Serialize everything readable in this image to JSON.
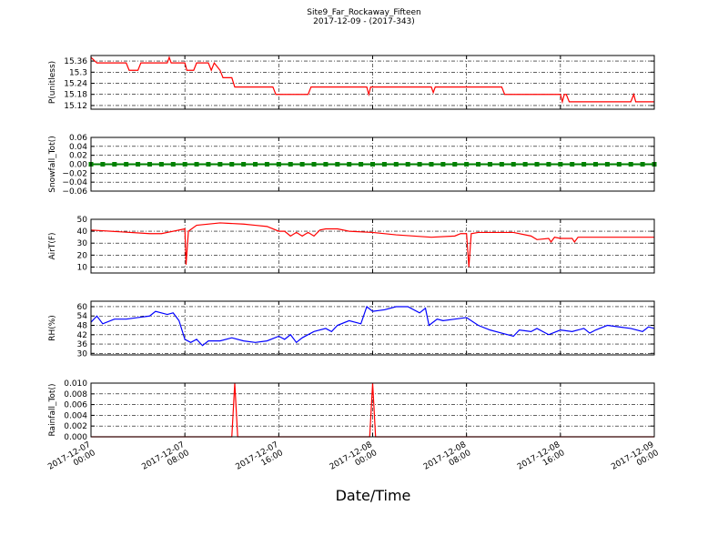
{
  "title": "Site9_Far_Rockaway_Fifteen",
  "subtitle": "2017-12-09 - (2017-343)",
  "xlabel": "Date/Time",
  "chart_data": [
    {
      "type": "line",
      "ylabel": "P(unitless)",
      "color": "#ff0000",
      "grid": true,
      "xlim": [
        "2017-12-07 00:00",
        "2017-12-09 00:00"
      ],
      "xticks": [
        "2017-12-07 00:00",
        "2017-12-07 08:00",
        "2017-12-07 16:00",
        "2017-12-08 00:00",
        "2017-12-08 08:00",
        "2017-12-08 16:00",
        "2017-12-09 00:00"
      ],
      "ylim": [
        15.1,
        15.39
      ],
      "yticks": [
        15.12,
        15.18,
        15.24,
        15.3,
        15.36
      ],
      "x": [
        "2017-12-07 00:00",
        "2017-12-07 00:30",
        "2017-12-07 03:00",
        "2017-12-07 03:15",
        "2017-12-07 04:00",
        "2017-12-07 04:15",
        "2017-12-07 06:30",
        "2017-12-07 06:40",
        "2017-12-07 06:50",
        "2017-12-07 08:00",
        "2017-12-07 08:10",
        "2017-12-07 08:45",
        "2017-12-07 09:00",
        "2017-12-07 10:00",
        "2017-12-07 10:15",
        "2017-12-07 10:30",
        "2017-12-07 11:00",
        "2017-12-07 11:15",
        "2017-12-07 12:00",
        "2017-12-07 12:15",
        "2017-12-07 15:30",
        "2017-12-07 15:45",
        "2017-12-07 18:30",
        "2017-12-07 18:45",
        "2017-12-07 23:30",
        "2017-12-07 23:40",
        "2017-12-07 23:50",
        "2017-12-08 05:00",
        "2017-12-08 05:10",
        "2017-12-08 05:20",
        "2017-12-08 11:00",
        "2017-12-08 11:15",
        "2017-12-08 16:00",
        "2017-12-08 16:10",
        "2017-12-08 16:20",
        "2017-12-08 16:30",
        "2017-12-08 16:45",
        "2017-12-08 22:00",
        "2017-12-08 22:15",
        "2017-12-08 22:25",
        "2017-12-09 00:00"
      ],
      "values": [
        15.38,
        15.35,
        15.35,
        15.31,
        15.31,
        15.35,
        15.35,
        15.38,
        15.35,
        15.35,
        15.31,
        15.31,
        15.35,
        15.35,
        15.31,
        15.35,
        15.31,
        15.27,
        15.27,
        15.22,
        15.22,
        15.18,
        15.18,
        15.22,
        15.22,
        15.18,
        15.22,
        15.22,
        15.19,
        15.22,
        15.22,
        15.18,
        15.18,
        15.14,
        15.18,
        15.18,
        15.14,
        15.14,
        15.18,
        15.14,
        15.14
      ]
    },
    {
      "type": "line",
      "ylabel": "Snowfall_Tot()",
      "color": "#008000",
      "grid": true,
      "marker": true,
      "xlim": [
        "2017-12-07 00:00",
        "2017-12-09 00:00"
      ],
      "xticks": [
        "2017-12-07 00:00",
        "2017-12-07 08:00",
        "2017-12-07 16:00",
        "2017-12-08 00:00",
        "2017-12-08 08:00",
        "2017-12-08 16:00",
        "2017-12-09 00:00"
      ],
      "ylim": [
        -0.06,
        0.06
      ],
      "yticks": [
        {
          "value": -0.06,
          "label": "−0.06"
        },
        {
          "value": -0.04,
          "label": "−0.04"
        },
        {
          "value": -0.02,
          "label": "−0.02"
        },
        {
          "value": 0,
          "label": "0.00"
        },
        0.02,
        0.04,
        0.06
      ],
      "x": [
        "2017-12-07 00:00",
        "2017-12-07 01:00",
        "2017-12-07 02:00",
        "2017-12-07 03:00",
        "2017-12-07 04:00",
        "2017-12-07 05:00",
        "2017-12-07 06:00",
        "2017-12-07 07:00",
        "2017-12-07 08:00",
        "2017-12-07 09:00",
        "2017-12-07 10:00",
        "2017-12-07 11:00",
        "2017-12-07 12:00",
        "2017-12-07 13:00",
        "2017-12-07 14:00",
        "2017-12-07 15:00",
        "2017-12-07 16:00",
        "2017-12-07 17:00",
        "2017-12-07 18:00",
        "2017-12-07 19:00",
        "2017-12-07 20:00",
        "2017-12-07 21:00",
        "2017-12-07 22:00",
        "2017-12-07 23:00",
        "2017-12-08 00:00",
        "2017-12-08 01:00",
        "2017-12-08 02:00",
        "2017-12-08 03:00",
        "2017-12-08 04:00",
        "2017-12-08 05:00",
        "2017-12-08 06:00",
        "2017-12-08 07:00",
        "2017-12-08 08:00",
        "2017-12-08 09:00",
        "2017-12-08 10:00",
        "2017-12-08 11:00",
        "2017-12-08 12:00",
        "2017-12-08 13:00",
        "2017-12-08 14:00",
        "2017-12-08 15:00",
        "2017-12-08 16:00",
        "2017-12-08 17:00",
        "2017-12-08 18:00",
        "2017-12-08 19:00",
        "2017-12-08 20:00",
        "2017-12-08 21:00",
        "2017-12-08 22:00",
        "2017-12-08 23:00",
        "2017-12-09 00:00"
      ],
      "values": [
        0,
        0,
        0,
        0,
        0,
        0,
        0,
        0,
        0,
        0,
        0,
        0,
        0,
        0,
        0,
        0,
        0,
        0,
        0,
        0,
        0,
        0,
        0,
        0,
        0,
        0,
        0,
        0,
        0,
        0,
        0,
        0,
        0,
        0,
        0,
        0,
        0,
        0,
        0,
        0,
        0,
        0,
        0,
        0,
        0,
        0,
        0,
        0,
        0
      ]
    },
    {
      "type": "line",
      "ylabel": "AirT(F)",
      "color": "#ff0000",
      "grid": true,
      "xlim": [
        "2017-12-07 00:00",
        "2017-12-09 00:00"
      ],
      "xticks": [
        "2017-12-07 00:00",
        "2017-12-07 08:00",
        "2017-12-07 16:00",
        "2017-12-08 00:00",
        "2017-12-08 08:00",
        "2017-12-08 16:00",
        "2017-12-09 00:00"
      ],
      "ylim": [
        5,
        50
      ],
      "yticks": [
        10,
        20,
        30,
        40,
        50
      ],
      "x": [
        "2017-12-07 00:00",
        "2017-12-07 05:00",
        "2017-12-07 06:00",
        "2017-12-07 08:00",
        "2017-12-07 08:06",
        "2017-12-07 08:18",
        "2017-12-07 09:00",
        "2017-12-07 11:00",
        "2017-12-07 13:00",
        "2017-12-07 14:00",
        "2017-12-07 15:00",
        "2017-12-07 16:00",
        "2017-12-07 16:30",
        "2017-12-07 17:00",
        "2017-12-07 17:30",
        "2017-12-07 18:00",
        "2017-12-07 18:30",
        "2017-12-07 19:00",
        "2017-12-07 19:30",
        "2017-12-07 20:00",
        "2017-12-07 21:00",
        "2017-12-07 22:00",
        "2017-12-08 00:00",
        "2017-12-08 02:00",
        "2017-12-08 05:00",
        "2017-12-08 07:00",
        "2017-12-08 07:30",
        "2017-12-08 08:00",
        "2017-12-08 08:12",
        "2017-12-08 08:24",
        "2017-12-08 09:00",
        "2017-12-08 12:00",
        "2017-12-08 13:30",
        "2017-12-08 14:00",
        "2017-12-08 15:00",
        "2017-12-08 15:12",
        "2017-12-08 15:30",
        "2017-12-08 16:00",
        "2017-12-08 17:00",
        "2017-12-08 17:12",
        "2017-12-08 17:30",
        "2017-12-09 00:00"
      ],
      "values": [
        41,
        38,
        38,
        42,
        12,
        40,
        45,
        47,
        46,
        45,
        44,
        40,
        40,
        36,
        39,
        36,
        39,
        36,
        41,
        42,
        42,
        40,
        39,
        37,
        35,
        36,
        38,
        38,
        10,
        38,
        39,
        39,
        36,
        33,
        34,
        31,
        35,
        34,
        34,
        31,
        35,
        35
      ]
    },
    {
      "type": "line",
      "ylabel": "RH(%)",
      "color": "#0000ff",
      "grid": true,
      "xlim": [
        "2017-12-07 00:00",
        "2017-12-09 00:00"
      ],
      "xticks": [
        "2017-12-07 00:00",
        "2017-12-07 08:00",
        "2017-12-07 16:00",
        "2017-12-08 00:00",
        "2017-12-08 08:00",
        "2017-12-08 16:00",
        "2017-12-09 00:00"
      ],
      "ylim": [
        29,
        63.5
      ],
      "yticks": [
        30,
        36,
        42,
        48,
        54,
        60
      ],
      "x": [
        "2017-12-07 00:00",
        "2017-12-07 00:30",
        "2017-12-07 01:00",
        "2017-12-07 02:00",
        "2017-12-07 03:00",
        "2017-12-07 04:00",
        "2017-12-07 05:00",
        "2017-12-07 05:30",
        "2017-12-07 06:30",
        "2017-12-07 07:00",
        "2017-12-07 07:30",
        "2017-12-07 08:00",
        "2017-12-07 08:30",
        "2017-12-07 09:00",
        "2017-12-07 09:30",
        "2017-12-07 10:00",
        "2017-12-07 11:00",
        "2017-12-07 12:00",
        "2017-12-07 13:00",
        "2017-12-07 14:00",
        "2017-12-07 15:00",
        "2017-12-07 16:00",
        "2017-12-07 16:30",
        "2017-12-07 17:00",
        "2017-12-07 17:30",
        "2017-12-07 18:00",
        "2017-12-07 19:00",
        "2017-12-07 20:00",
        "2017-12-07 20:30",
        "2017-12-07 21:00",
        "2017-12-07 22:00",
        "2017-12-07 23:00",
        "2017-12-07 23:30",
        "2017-12-08 00:00",
        "2017-12-08 01:00",
        "2017-12-08 02:00",
        "2017-12-08 03:00",
        "2017-12-08 04:00",
        "2017-12-08 04:30",
        "2017-12-08 04:48",
        "2017-12-08 05:30",
        "2017-12-08 06:00",
        "2017-12-08 07:00",
        "2017-12-08 08:00",
        "2017-12-08 09:00",
        "2017-12-08 10:00",
        "2017-12-08 11:00",
        "2017-12-08 12:00",
        "2017-12-08 12:30",
        "2017-12-08 13:30",
        "2017-12-08 14:00",
        "2017-12-08 15:00",
        "2017-12-08 16:00",
        "2017-12-08 17:00",
        "2017-12-08 18:00",
        "2017-12-08 18:30",
        "2017-12-08 19:00",
        "2017-12-08 20:00",
        "2017-12-08 21:00",
        "2017-12-08 22:00",
        "2017-12-08 23:00",
        "2017-12-08 23:30",
        "2017-12-09 00:00"
      ],
      "values": [
        50,
        54,
        49,
        52,
        52,
        53,
        54,
        57,
        55,
        56,
        51,
        39,
        37,
        39,
        35,
        38,
        38,
        40,
        38,
        37,
        38,
        41,
        39,
        42,
        37,
        40,
        44,
        46,
        44,
        48,
        51,
        49,
        60,
        57,
        58,
        60,
        60,
        56,
        59,
        48,
        52,
        51,
        52,
        53,
        48,
        45,
        43,
        41,
        45,
        44,
        46,
        42,
        45,
        44,
        46,
        43,
        45,
        48,
        47,
        46,
        44,
        47,
        46
      ]
    },
    {
      "type": "line",
      "ylabel": "Rainfall_Tot()",
      "color": "#ff0000",
      "grid": true,
      "xlim": [
        "2017-12-07 00:00",
        "2017-12-09 00:00"
      ],
      "xticks": [
        "2017-12-07 00:00",
        "2017-12-07 08:00",
        "2017-12-07 16:00",
        "2017-12-08 00:00",
        "2017-12-08 08:00",
        "2017-12-08 16:00",
        "2017-12-09 00:00"
      ],
      "ylim": [
        0,
        0.01
      ],
      "yticks": [
        {
          "value": 0,
          "label": "0.000"
        },
        {
          "value": 0.002,
          "label": "0.002"
        },
        {
          "value": 0.004,
          "label": "0.004"
        },
        {
          "value": 0.006,
          "label": "0.006"
        },
        {
          "value": 0.008,
          "label": "0.008"
        },
        {
          "value": 0.01,
          "label": "0.010"
        }
      ],
      "x": [
        "2017-12-07 00:00",
        "2017-12-07 12:00",
        "2017-12-07 12:15",
        "2017-12-07 12:30",
        "2017-12-07 23:45",
        "2017-12-08 00:00",
        "2017-12-08 00:15",
        "2017-12-09 00:00"
      ],
      "values": [
        0,
        0,
        0.01,
        0,
        0,
        0.01,
        0,
        0
      ]
    }
  ]
}
